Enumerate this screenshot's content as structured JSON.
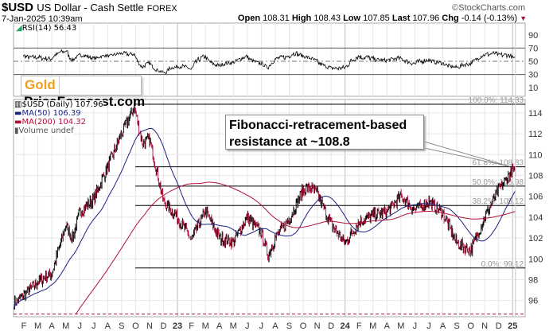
{
  "header": {
    "symbol": "$USD",
    "name": "US Dollar - Cash Settle",
    "exchange": "FOREX",
    "watermark": "©StockCharts.com",
    "datetime": "7-Jan-2025 10:39am",
    "open_label": "Open",
    "open": "108.31",
    "high_label": "High",
    "high": "108.43",
    "low_label": "Low",
    "low": "107.85",
    "last_label": "Last",
    "last": "107.96",
    "chg_label": "Chg",
    "chg": "-0.14 (-0.13%)"
  },
  "logo": {
    "gold": "Gold",
    "rest": "PriceForecast.com"
  },
  "annotation": "Fibonacci-retracement-based resistance at ~108.8",
  "colors": {
    "price_up": "#000000",
    "price_down": "#b0103a",
    "ma50": "#1a237e",
    "ma200": "#b0103a",
    "fib": "#000000"
  },
  "chart_data": [
    {
      "type": "line",
      "title": "RSI(14) 56.43",
      "legend": "RSI(14) 56.43",
      "ylim": [
        0,
        100
      ],
      "yticks": [
        10,
        30,
        50,
        70,
        90
      ],
      "reference_lines": [
        30,
        50,
        70
      ],
      "last": 56.43
    },
    {
      "type": "line",
      "title": "$USD (Daily) 107.96",
      "legend": [
        "$USD (Daily) 107.96",
        "MA(50) 106.39",
        "MA(200) 104.32",
        "Volume undef"
      ],
      "ylim": [
        94.5,
        115.2
      ],
      "yticks": [
        96,
        98,
        100,
        102,
        104,
        106,
        108,
        110,
        112,
        114
      ],
      "xticks": [
        "F",
        "M",
        "A",
        "M",
        "J",
        "J",
        "A",
        "S",
        "O",
        "N",
        "D",
        "23",
        "F",
        "M",
        "A",
        "M",
        "J",
        "J",
        "A",
        "S",
        "O",
        "N",
        "D",
        "24",
        "F",
        "M",
        "A",
        "M",
        "J",
        "J",
        "A",
        "S",
        "O",
        "N",
        "D",
        "25"
      ],
      "x_months_from_jan2022": [
        0.3,
        1,
        2,
        3,
        4,
        4.5,
        5,
        6,
        7,
        8,
        8.9,
        9.5,
        10,
        11,
        12,
        13,
        14,
        15,
        16,
        17,
        18,
        18.5,
        19,
        20,
        21,
        21.5,
        22,
        23,
        24,
        25,
        26,
        27,
        28,
        29,
        30,
        31,
        32,
        33,
        34,
        35,
        36,
        36.2
      ],
      "close_approx": [
        95.7,
        96.5,
        97.8,
        98.6,
        103.2,
        102,
        104.5,
        105.7,
        108.8,
        112,
        114.6,
        111,
        111.5,
        105.5,
        104,
        101.8,
        104.6,
        102,
        101.6,
        104,
        102.5,
        100.3,
        102,
        103.8,
        106.6,
        106.8,
        106.3,
        103.3,
        101.5,
        103.5,
        104.2,
        104.5,
        106,
        104.7,
        105.5,
        104.4,
        101.5,
        100.8,
        104,
        106.6,
        108.5,
        107.96
      ],
      "ma50_last": 106.39,
      "ma200_last": 104.32,
      "fibonacci": [
        {
          "label": "100.0%: 114.83",
          "value": 114.83
        },
        {
          "label": "61.8%: 108.83",
          "value": 108.83
        },
        {
          "label": "50.0%: 106.98",
          "value": 106.98
        },
        {
          "label": "38.2%: 105.12",
          "value": 105.12
        },
        {
          "label": "0.0%: 99.12",
          "value": 99.12
        }
      ],
      "dashed_level": 94.7
    }
  ]
}
